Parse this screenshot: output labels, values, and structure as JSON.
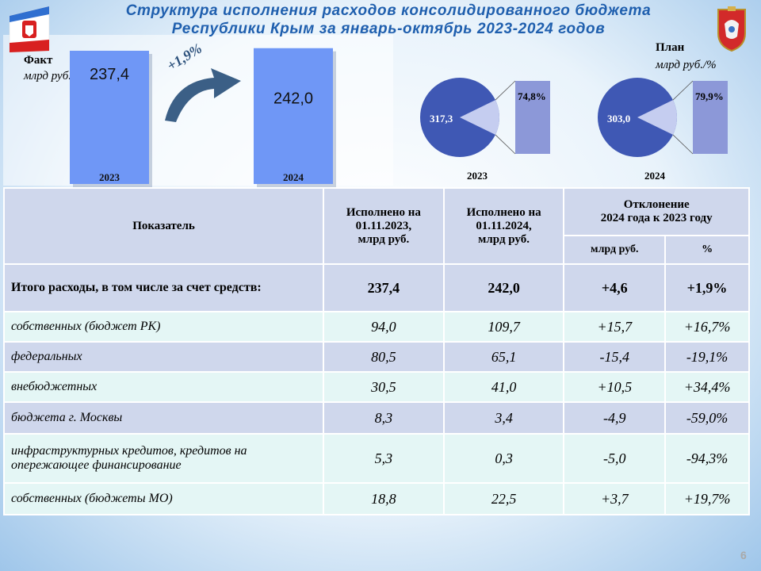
{
  "title_line1": "Структура исполнения расходов консолидированного бюджета",
  "title_line2": "Республики Крым за январь-октябрь 2023-2024 годов",
  "left_chart": {
    "label": "Факт",
    "unit": "млрд руб./%",
    "growth": "+1,9%"
  },
  "right_chart": {
    "label": "План",
    "unit": "млрд руб./%"
  },
  "chart_data": [
    {
      "type": "bar",
      "categories": [
        "2023",
        "2024"
      ],
      "values": [
        237.4,
        242.0
      ],
      "value_labels": [
        "237,4",
        "242,0"
      ],
      "ylim": [
        0,
        260
      ],
      "grid": false,
      "color": "#6f97f6"
    },
    {
      "type": "pie",
      "year": "2023",
      "plan_value": 317.3,
      "plan_label": "317,3",
      "executed_percent": 74.8,
      "executed_label": "74,8%",
      "colors": {
        "plan": "#3f58b4",
        "slice": "#c5cdf0",
        "bar": "#8c98d8"
      }
    },
    {
      "type": "pie",
      "year": "2024",
      "plan_value": 303.0,
      "plan_label": "303,0",
      "executed_percent": 79.9,
      "executed_label": "79,9%",
      "colors": {
        "plan": "#3f58b4",
        "slice": "#c5cdf0",
        "bar": "#8c98d8"
      }
    }
  ],
  "table": {
    "headers": {
      "indicator": "Показатель",
      "col2023_l1": "Исполнено на",
      "col2023_l2": "01.11.2023,",
      "col2023_l3": "млрд руб.",
      "col2024_l1": "Исполнено на",
      "col2024_l2": "01.11.2024,",
      "col2024_l3": "млрд руб.",
      "deviation_l1": "Отклонение",
      "deviation_l2": "2024 года к 2023 году",
      "dev_abs": "млрд руб.",
      "dev_pct": "%"
    },
    "rows": [
      {
        "name": "Итого расходы, в том числе за счет средств:",
        "v2023": "237,4",
        "v2024": "242,0",
        "dev": "+4,6",
        "pct": "+1,9%"
      },
      {
        "name": "собственных (бюджет РК)",
        "v2023": "94,0",
        "v2024": "109,7",
        "dev": "+15,7",
        "pct": "+16,7%"
      },
      {
        "name": "федеральных",
        "v2023": "80,5",
        "v2024": "65,1",
        "dev": "-15,4",
        "pct": "-19,1%"
      },
      {
        "name": "внебюджетных",
        "v2023": "30,5",
        "v2024": "41,0",
        "dev": "+10,5",
        "pct": "+34,4%"
      },
      {
        "name": "бюджета г. Москвы",
        "v2023": "8,3",
        "v2024": "3,4",
        "dev": "-4,9",
        "pct": "-59,0%"
      },
      {
        "name": "инфраструктурных  кредитов, кредитов на опережающее финансирование",
        "v2023": "5,3",
        "v2024": "0,3",
        "dev": "-5,0",
        "pct": "-94,3%"
      },
      {
        "name": "собственных (бюджеты МО)",
        "v2023": "18,8",
        "v2024": "22,5",
        "dev": "+3,7",
        "pct": "+19,7%"
      }
    ]
  },
  "page_number": "6"
}
